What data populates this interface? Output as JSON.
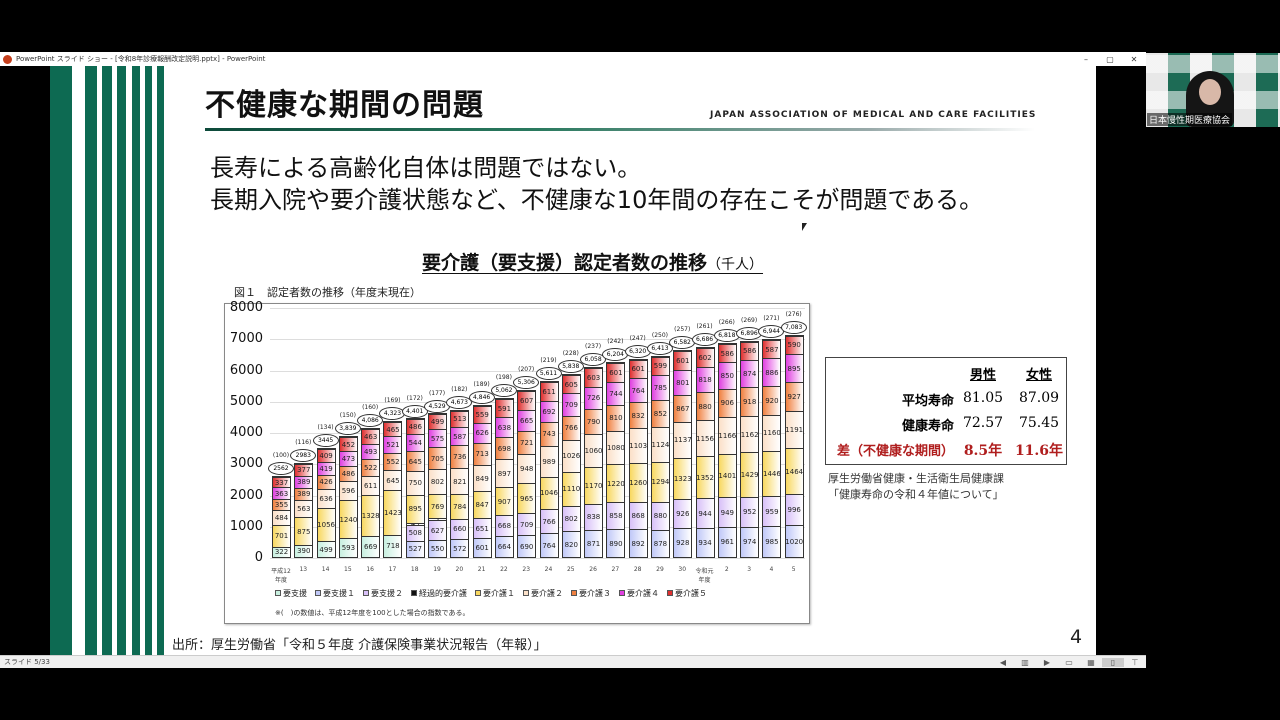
{
  "window": {
    "title": "PowerPoint スライド ショー - [令和8年診療報酬改定説明.pptx] - PowerPoint",
    "minimize_icon": "–",
    "restore_icon": "▢",
    "close_icon": "✕"
  },
  "slide": {
    "title": "不健康な期間の問題",
    "org_name": "JAPAN ASSOCIATION OF MEDICAL AND CARE FACILITIES",
    "body_lines": [
      "長寿による高齢化自体は問題ではない。",
      "長期入院や要介護状態など、不健康な10年間の存在こそが問題である。"
    ],
    "chart_heading": "要介護（要支援）認定者数の推移",
    "chart_heading_unit": "（千人）",
    "figure_caption": "図１　認定者数の推移（年度末現在）",
    "legend": [
      {
        "label": "要支援",
        "color": "#c8f0e0"
      },
      {
        "label": "要支援１",
        "color": "#c0c8f8"
      },
      {
        "label": "要支援２",
        "color": "#d8c0f8"
      },
      {
        "label": "経過的要介護",
        "color": "#111111"
      },
      {
        "label": "要介護１",
        "color": "#f8d860"
      },
      {
        "label": "要介護２",
        "color": "#fbe0c8"
      },
      {
        "label": "要介護３",
        "color": "#f08040"
      },
      {
        "label": "要介護４",
        "color": "#e040e0"
      },
      {
        "label": "要介護５",
        "color": "#e03030"
      }
    ],
    "footnote": "※(　)の数値は、平成12年度を100とした場合の指数である。",
    "life_table": {
      "header_male": "男性",
      "header_female": "女性",
      "rows": [
        {
          "label": "平均寿命",
          "male": "81.05",
          "female": "87.09"
        },
        {
          "label": "健康寿命",
          "male": "72.57",
          "female": "75.45"
        },
        {
          "label": "差（不健康な期間）",
          "male": "8.5年",
          "female": "11.6年"
        }
      ],
      "source_line1": "厚生労働省健康・生活衛生局健康課",
      "source_line2": "「健康寿命の令和４年値について」"
    },
    "source": "出所：厚生労働省「令和５年度 介護保険事業状況報告（年報）」",
    "page_number": "4"
  },
  "statusbar": {
    "slide_count": "スライド 5/33",
    "buttons": [
      "◀",
      "▥",
      "▶",
      "▭",
      "▦",
      "▯",
      "⊤"
    ]
  },
  "webcam": {
    "caption": "日本慢性期医療協会"
  },
  "chart_data": {
    "type": "bar",
    "stacked": true,
    "title": "図１　認定者数の推移（年度末現在）",
    "ylabel": "千人",
    "ylim": [
      0,
      8000
    ],
    "yticks": [
      0,
      1000,
      2000,
      3000,
      4000,
      5000,
      6000,
      7000,
      8000
    ],
    "categories": [
      "平成12年度",
      "13",
      "14",
      "15",
      "16",
      "17",
      "18",
      "19",
      "20",
      "21",
      "22",
      "23",
      "24",
      "25",
      "26",
      "27",
      "28",
      "29",
      "30",
      "令和元年度",
      "2",
      "3",
      "4",
      "5"
    ],
    "totals": [
      "2562",
      "2983",
      "3445",
      "3,839",
      "4,086",
      "4,323",
      "4,401",
      "4,529",
      "4,673",
      "4,846",
      "5,062",
      "5,306",
      "5,611",
      "5,838",
      "6,058",
      "6,204",
      "6,320",
      "6,413",
      "6,582",
      "6,686",
      "6,818",
      "6,896",
      "6,944",
      "7,083"
    ],
    "index": [
      "(100)",
      "(116)",
      "(134)",
      "(150)",
      "(160)",
      "(169)",
      "(172)",
      "(177)",
      "(182)",
      "(189)",
      "(198)",
      "(207)",
      "(219)",
      "(228)",
      "(237)",
      "(242)",
      "(247)",
      "(250)",
      "(257)",
      "(261)",
      "(266)",
      "(269)",
      "(271)",
      "(276)"
    ],
    "series": [
      {
        "name": "要支援",
        "values": [
          322,
          390,
          499,
          593,
          669,
          718,
          0,
          0,
          0,
          0,
          0,
          0,
          0,
          0,
          0,
          0,
          0,
          0,
          0,
          0,
          0,
          0,
          0,
          0
        ]
      },
      {
        "name": "要支援１",
        "values": [
          0,
          0,
          0,
          0,
          0,
          0,
          527,
          550,
          572,
          601,
          664,
          690,
          764,
          820,
          871,
          890,
          892,
          878,
          928,
          934,
          961,
          974,
          985,
          1020
        ]
      },
      {
        "name": "要支援２",
        "values": [
          0,
          0,
          0,
          0,
          0,
          0,
          508,
          627,
          660,
          651,
          668,
          709,
          766,
          802,
          838,
          858,
          868,
          880,
          926,
          944,
          949,
          952,
          959,
          996
        ]
      },
      {
        "name": "経過的要介護",
        "values": [
          0,
          0,
          0,
          0,
          0,
          0,
          45,
          2,
          0,
          0,
          0,
          0,
          0,
          0,
          0,
          0,
          0,
          0,
          0,
          0,
          0,
          0,
          0,
          0
        ]
      },
      {
        "name": "要介護１",
        "values": [
          701,
          875,
          1056,
          1240,
          1328,
          1423,
          895,
          769,
          784,
          847,
          907,
          965,
          1046,
          1110,
          1170,
          1220,
          1260,
          1294,
          1323,
          1352,
          1401,
          1429,
          1446,
          1464
        ]
      },
      {
        "name": "要介護２",
        "values": [
          484,
          563,
          636,
          596,
          611,
          645,
          750,
          802,
          821,
          849,
          897,
          948,
          989,
          1026,
          1060,
          1080,
          1103,
          1124,
          1137,
          1156,
          1166,
          1162,
          1160,
          1191
        ]
      },
      {
        "name": "要介護３",
        "values": [
          355,
          389,
          426,
          486,
          522,
          552,
          645,
          705,
          736,
          713,
          698,
          721,
          743,
          766,
          790,
          810,
          832,
          852,
          867,
          880,
          906,
          918,
          920,
          927
        ]
      },
      {
        "name": "要介護４",
        "values": [
          363,
          389,
          419,
          473,
          493,
          521,
          544,
          575,
          587,
          626,
          638,
          665,
          692,
          709,
          726,
          744,
          764,
          785,
          801,
          818,
          850,
          874,
          886,
          895
        ]
      },
      {
        "name": "要介護５",
        "values": [
          337,
          377,
          409,
          452,
          463,
          465,
          486,
          499,
          513,
          559,
          591,
          607,
          611,
          605,
          603,
          601,
          601,
          599,
          601,
          602,
          586,
          586,
          587,
          590
        ]
      }
    ],
    "legend_position": "bottom",
    "grid": true
  }
}
